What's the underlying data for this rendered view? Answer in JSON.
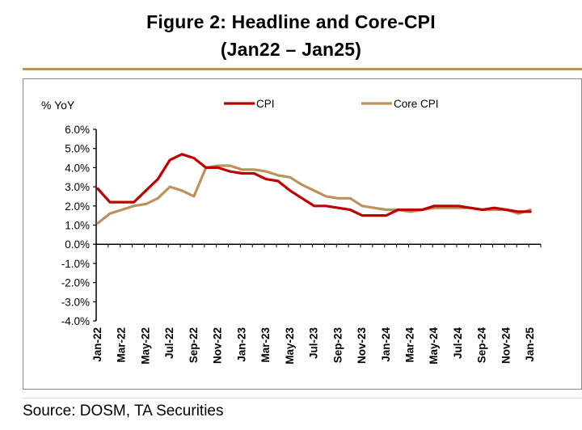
{
  "header": {
    "title_line1": "Figure 2: Headline and Core-CPI",
    "title_line2": "(Jan22 – Jan25)"
  },
  "footer": {
    "source": "Source: DOSM, TA Securities"
  },
  "chart_data": {
    "type": "line",
    "ylabel": "% YoY",
    "xlabel": "",
    "ylim": [
      -4.0,
      6.0
    ],
    "y_ticks": [
      "6.0%",
      "5.0%",
      "4.0%",
      "3.0%",
      "2.0%",
      "1.0%",
      "0.0%",
      "-1.0%",
      "-2.0%",
      "-3.0%",
      "-4.0%"
    ],
    "x_tick_labels": [
      "Jan-22",
      "Mar-22",
      "May-22",
      "Jul-22",
      "Sep-22",
      "Nov-22",
      "Jan-23",
      "Mar-23",
      "May-23",
      "Jul-23",
      "Sep-23",
      "Nov-23",
      "Jan-24",
      "Mar-24",
      "May-24",
      "Jul-24",
      "Sep-24",
      "Nov-24",
      "Jan-25"
    ],
    "categories": [
      "Jan-22",
      "Feb-22",
      "Mar-22",
      "Apr-22",
      "May-22",
      "Jun-22",
      "Jul-22",
      "Aug-22",
      "Sep-22",
      "Oct-22",
      "Nov-22",
      "Dec-22",
      "Jan-23",
      "Feb-23",
      "Mar-23",
      "Apr-23",
      "May-23",
      "Jun-23",
      "Jul-23",
      "Aug-23",
      "Sep-23",
      "Oct-23",
      "Nov-23",
      "Dec-23",
      "Jan-24",
      "Feb-24",
      "Mar-24",
      "Apr-24",
      "May-24",
      "Jun-24",
      "Jul-24",
      "Aug-24",
      "Sep-24",
      "Oct-24",
      "Nov-24",
      "Dec-24",
      "Jan-25"
    ],
    "legend_position": "top",
    "grid": false,
    "series": [
      {
        "name": "CPI",
        "color": "#c00000",
        "values": [
          2.9,
          2.2,
          2.2,
          2.2,
          2.8,
          3.4,
          4.4,
          4.7,
          4.5,
          4.0,
          4.0,
          3.8,
          3.7,
          3.7,
          3.4,
          3.3,
          2.8,
          2.4,
          2.0,
          2.0,
          1.9,
          1.8,
          1.5,
          1.5,
          1.5,
          1.8,
          1.8,
          1.8,
          2.0,
          2.0,
          2.0,
          1.9,
          1.8,
          1.9,
          1.8,
          1.7,
          1.7
        ]
      },
      {
        "name": "Core CPI",
        "color": "#b9935a",
        "values": [
          1.1,
          1.6,
          1.8,
          2.0,
          2.1,
          2.4,
          3.0,
          2.8,
          2.5,
          4.0,
          4.1,
          4.1,
          3.9,
          3.9,
          3.8,
          3.6,
          3.5,
          3.1,
          2.8,
          2.5,
          2.4,
          2.4,
          2.0,
          1.9,
          1.8,
          1.8,
          1.7,
          1.8,
          1.9,
          1.9,
          1.9,
          1.9,
          1.8,
          1.8,
          1.8,
          1.6,
          1.8
        ]
      }
    ]
  }
}
